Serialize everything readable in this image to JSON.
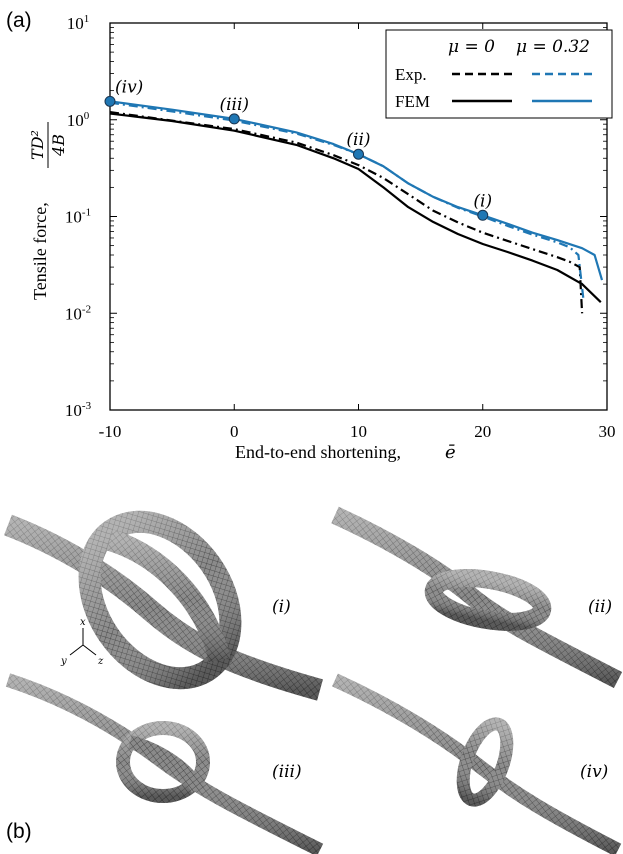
{
  "panel_a_label": "(a)",
  "panel_b_label": "(b)",
  "chart_data": {
    "type": "line",
    "xlabel": "End-to-end shortening,",
    "xlabel_symbol": "ē",
    "ylabel": "Tensile force,",
    "ylabel_num": "TD²",
    "ylabel_den": "4B",
    "xlim": [
      -10,
      30
    ],
    "ylim": [
      0.001,
      10
    ],
    "yscale": "log",
    "xticks": [
      -10,
      0,
      10,
      20,
      30
    ],
    "xtick_labels": [
      "-10",
      "0",
      "10",
      "20",
      "30"
    ],
    "yticks": [
      0.001,
      0.01,
      0.1,
      1,
      10
    ],
    "ytick_bases": [
      "10",
      "10",
      "10",
      "10",
      "10"
    ],
    "ytick_exps": [
      "-3",
      "-2",
      "-1",
      "0",
      "1"
    ],
    "legend": {
      "position": "top-right",
      "col_headers": [
        "μ = 0",
        "μ = 0.32"
      ],
      "row_labels": [
        "Exp.",
        "FEM"
      ]
    },
    "colors": {
      "mu0": "#000000",
      "mu032": "#1f77b4"
    },
    "series": [
      {
        "key": "exp_mu0",
        "x": [
          -10,
          -5,
          0,
          5,
          8,
          10,
          12,
          14,
          16,
          18,
          20,
          22,
          24,
          26,
          27,
          27.8,
          28
        ],
        "y": [
          1.2,
          0.98,
          0.8,
          0.58,
          0.43,
          0.34,
          0.25,
          0.17,
          0.115,
          0.087,
          0.068,
          0.056,
          0.046,
          0.038,
          0.034,
          0.03,
          0.01
        ]
      },
      {
        "key": "exp_mu032",
        "x": [
          -10,
          -5,
          0,
          5,
          8,
          10,
          12,
          14,
          16,
          18,
          20,
          22,
          24,
          26,
          27,
          27.7,
          28.1
        ],
        "y": [
          1.5,
          1.22,
          0.98,
          0.72,
          0.55,
          0.44,
          0.33,
          0.22,
          0.16,
          0.123,
          0.1,
          0.08,
          0.065,
          0.054,
          0.048,
          0.04,
          0.014
        ]
      },
      {
        "key": "fem_mu0",
        "x": [
          -10,
          -8,
          -5,
          0,
          5,
          8,
          10,
          12,
          14,
          16,
          18,
          20,
          22,
          24,
          26,
          28,
          29.5
        ],
        "y": [
          1.16,
          1.08,
          0.97,
          0.77,
          0.55,
          0.4,
          0.31,
          0.2,
          0.125,
          0.088,
          0.066,
          0.052,
          0.043,
          0.035,
          0.028,
          0.02,
          0.013
        ]
      },
      {
        "key": "fem_mu032",
        "x": [
          -10,
          -5,
          0,
          5,
          8,
          10,
          12,
          14,
          16,
          18,
          20,
          22,
          24,
          26,
          28,
          29,
          29.6
        ],
        "y": [
          1.55,
          1.27,
          1.02,
          0.74,
          0.56,
          0.44,
          0.33,
          0.22,
          0.16,
          0.125,
          0.103,
          0.084,
          0.068,
          0.057,
          0.047,
          0.04,
          0.022
        ]
      }
    ],
    "markers": [
      {
        "label": "(iv)",
        "x": -10,
        "y": 1.55
      },
      {
        "label": "(iii)",
        "x": 0,
        "y": 1.02
      },
      {
        "label": "(ii)",
        "x": 10,
        "y": 0.44
      },
      {
        "label": "(i)",
        "x": 20,
        "y": 0.103
      }
    ]
  },
  "knot_labels": [
    "(i)",
    "(ii)",
    "(iii)",
    "(iv)"
  ],
  "triad_labels": [
    "x",
    "y",
    "z"
  ]
}
